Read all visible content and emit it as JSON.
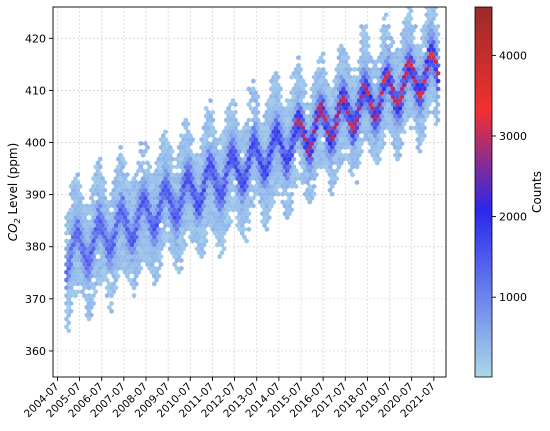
{
  "chart_data": {
    "type": "hexbin",
    "title": "",
    "xlabel": "",
    "ylabel_main": "CO",
    "ylabel_sub": "2",
    "ylabel_rest": " Level (ppm)",
    "x_tick_labels": [
      "2004-07",
      "2005-07",
      "2006-07",
      "2007-07",
      "2008-07",
      "2009-07",
      "2010-07",
      "2011-07",
      "2012-07",
      "2013-07",
      "2014-07",
      "2015-07",
      "2016-07",
      "2017-07",
      "2018-07",
      "2019-07",
      "2020-07",
      "2021-07"
    ],
    "x_tick_years": [
      2004.5,
      2005.5,
      2006.5,
      2007.5,
      2008.5,
      2009.5,
      2010.5,
      2011.5,
      2012.5,
      2013.5,
      2014.5,
      2015.5,
      2016.5,
      2017.5,
      2018.5,
      2019.5,
      2020.5,
      2021.5
    ],
    "xlim": [
      2004.3,
      2022.05
    ],
    "y_ticks": [
      360,
      370,
      380,
      390,
      400,
      410,
      420
    ],
    "ylim": [
      355,
      426
    ],
    "grid": true,
    "trend": {
      "start_year": 2005,
      "start_ppm": 378.5,
      "slope_per_year": 2.15
    },
    "seasonal_amplitude_ppm": 3.5,
    "colorbar": {
      "label": "Counts",
      "ticks": [
        1000,
        2000,
        3000,
        4000
      ],
      "range": [
        10,
        4600
      ],
      "colors": [
        "#aad8ea",
        "#2a28ee",
        "#f23030",
        "#9c2a2a"
      ]
    }
  }
}
